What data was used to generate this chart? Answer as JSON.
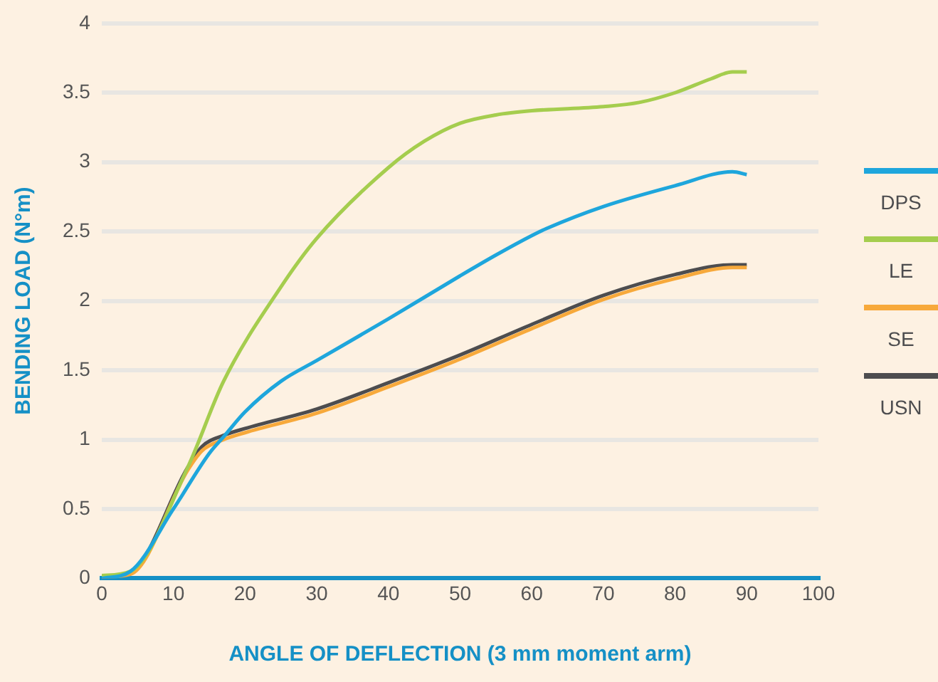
{
  "chart_data": {
    "type": "line",
    "xlabel": "ANGLE OF DEFLECTION (3 mm moment arm)",
    "ylabel": "BENDING LOAD (N°m)",
    "xlim": [
      0,
      100
    ],
    "xticks": [
      0,
      10,
      20,
      30,
      40,
      50,
      60,
      70,
      80,
      90,
      100
    ],
    "ylim": [
      0,
      4
    ],
    "yticks": [
      0,
      0.5,
      1,
      1.5,
      2,
      2.5,
      3,
      3.5,
      4
    ],
    "grid": "y",
    "legend": "right",
    "marker": "none",
    "line_style": "solid",
    "series": [
      {
        "name": "DPS",
        "color": "#1ea6dc",
        "x": [
          0,
          4,
          10,
          15,
          17,
          20,
          25,
          30,
          40,
          50,
          55,
          60,
          62,
          70,
          80,
          88,
          90
        ],
        "values": [
          0,
          0.05,
          0.5,
          0.9,
          1.02,
          1.2,
          1.42,
          1.57,
          1.87,
          2.18,
          2.33,
          2.47,
          2.52,
          2.68,
          2.83,
          2.93,
          2.91
        ]
      },
      {
        "name": "LE",
        "color": "#a5cd4e",
        "x": [
          0,
          4,
          12,
          17,
          25,
          30,
          40,
          45,
          50,
          55,
          60,
          70,
          75,
          80,
          85,
          88,
          90
        ],
        "values": [
          0.02,
          0.05,
          0.8,
          1.42,
          2.1,
          2.45,
          2.96,
          3.15,
          3.28,
          3.34,
          3.37,
          3.4,
          3.43,
          3.5,
          3.6,
          3.65,
          3.65
        ]
      },
      {
        "name": "SE",
        "color": "#f7a93b",
        "x": [
          0,
          4,
          12,
          14,
          17,
          20,
          30,
          40,
          50,
          60,
          70,
          80,
          88,
          90
        ],
        "values": [
          0.01,
          0.03,
          0.78,
          0.92,
          1.0,
          1.05,
          1.19,
          1.38,
          1.58,
          1.8,
          2.01,
          2.16,
          2.24,
          2.24
        ]
      },
      {
        "name": "USN",
        "color": "#4d4d4f",
        "x": [
          0,
          4,
          12,
          14,
          17,
          20,
          30,
          40,
          50,
          60,
          70,
          80,
          88,
          90
        ],
        "values": [
          0.01,
          0.04,
          0.8,
          0.95,
          1.03,
          1.08,
          1.22,
          1.41,
          1.61,
          1.83,
          2.04,
          2.19,
          2.26,
          2.26
        ]
      }
    ]
  }
}
